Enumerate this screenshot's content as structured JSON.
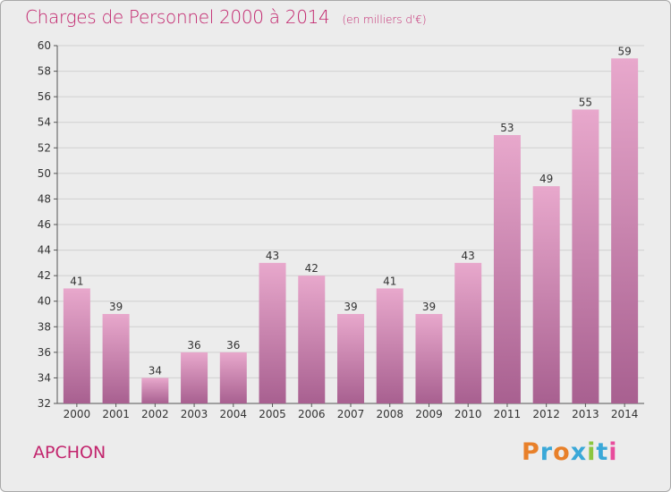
{
  "header": {
    "title": "Charges de Personnel 2000 à 2014",
    "subtitle": "(en milliers d'€)"
  },
  "footer": {
    "commune": "APCHON",
    "brand": "Proxiti"
  },
  "colors": {
    "title": "#c2256d",
    "bar_top": "#e8a8cc",
    "bar_bottom": "#a86090",
    "background": "#ececec",
    "brand_letters": [
      "#e8802a",
      "#3aa8d8",
      "#e8802a",
      "#3aa8d8",
      "#8cc63f",
      "#3aa8d8",
      "#e84c9c"
    ]
  },
  "chart_data": {
    "type": "bar",
    "title": "Charges de Personnel 2000 à 2014",
    "subtitle": "(en milliers d'€)",
    "categories": [
      "2000",
      "2001",
      "2002",
      "2003",
      "2004",
      "2005",
      "2006",
      "2007",
      "2008",
      "2009",
      "2010",
      "2011",
      "2012",
      "2013",
      "2014"
    ],
    "values": [
      41,
      39,
      34,
      36,
      36,
      43,
      42,
      39,
      41,
      39,
      43,
      53,
      49,
      55,
      59
    ],
    "ylim": [
      32,
      60
    ],
    "yticks": [
      32,
      34,
      36,
      38,
      40,
      42,
      44,
      46,
      48,
      50,
      52,
      54,
      56,
      58,
      60
    ],
    "grid": true,
    "data_labels": true
  }
}
